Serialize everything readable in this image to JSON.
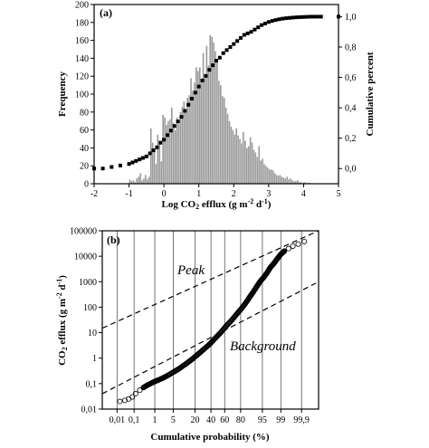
{
  "chart_data": [
    {
      "type": "bar",
      "panel_label": "(a)",
      "xlabel": "Log CO₂ efflux (g m⁻² d⁻¹)",
      "ylabel": "Frequency",
      "y2label": "Cumulative percent",
      "xlim": [
        -2,
        5
      ],
      "ylim": [
        0,
        200
      ],
      "y2lim": [
        -0.1,
        1.08
      ],
      "xticks": [
        "-2",
        "-1",
        "0",
        "1",
        "2",
        "3",
        "4",
        "5"
      ],
      "yticks": [
        "0",
        "20",
        "40",
        "60",
        "80",
        "100",
        "120",
        "140",
        "160",
        "180",
        "200"
      ],
      "y2ticks": [
        "0,0",
        "0,2",
        "0,4",
        "0,6",
        "0,8",
        "1,0"
      ],
      "bars": {
        "x_start": -1.0,
        "bin_width": 0.05,
        "values": [
          5,
          3,
          4,
          2,
          6,
          8,
          12,
          4,
          6,
          10,
          5,
          8,
          62,
          46,
          37,
          22,
          55,
          48,
          25,
          77,
          74,
          66,
          70,
          72,
          85,
          68,
          60,
          74,
          67,
          80,
          86,
          92,
          82,
          96,
          99,
          118,
          104,
          113,
          130,
          126,
          130,
          117,
          146,
          120,
          154,
          132,
          166,
          164,
          158,
          148,
          136,
          115,
          110,
          98,
          96,
          85,
          78,
          70,
          64,
          60,
          55,
          62,
          54,
          50,
          45,
          58,
          48,
          40,
          42,
          52,
          46,
          38,
          35,
          30,
          42,
          26,
          28,
          22,
          20,
          18,
          16,
          16,
          15,
          12,
          10,
          9,
          10,
          8,
          7,
          6,
          8,
          5,
          6,
          4,
          3,
          3,
          4,
          2,
          2,
          1,
          2,
          1,
          1,
          1
        ],
        "color": "#9a9a9a"
      },
      "cumulative": {
        "name": "Cumulative percent",
        "x": [
          -2,
          -1.75,
          -1.5,
          -1.25,
          -1.0,
          -0.9,
          -0.8,
          -0.7,
          -0.6,
          -0.5,
          -0.4,
          -0.3,
          -0.2,
          -0.1,
          0.0,
          0.1,
          0.2,
          0.3,
          0.4,
          0.5,
          0.6,
          0.7,
          0.8,
          0.9,
          1.0,
          1.1,
          1.2,
          1.3,
          1.4,
          1.5,
          1.6,
          1.7,
          1.8,
          1.9,
          2.0,
          2.1,
          2.2,
          2.3,
          2.4,
          2.5,
          2.6,
          2.7,
          2.8,
          2.9,
          3.0,
          3.1,
          3.2,
          3.3,
          3.4,
          3.5,
          3.6,
          3.7,
          3.8,
          3.9,
          4.0,
          4.1,
          4.2,
          4.3,
          4.4,
          4.5,
          5.0
        ],
        "y": [
          0.0,
          0.0,
          0.01,
          0.02,
          0.03,
          0.04,
          0.05,
          0.06,
          0.07,
          0.08,
          0.1,
          0.12,
          0.14,
          0.17,
          0.19,
          0.22,
          0.25,
          0.28,
          0.31,
          0.34,
          0.38,
          0.42,
          0.46,
          0.5,
          0.54,
          0.58,
          0.61,
          0.65,
          0.68,
          0.71,
          0.73,
          0.76,
          0.78,
          0.8,
          0.82,
          0.84,
          0.86,
          0.88,
          0.89,
          0.9,
          0.915,
          0.93,
          0.945,
          0.955,
          0.965,
          0.972,
          0.978,
          0.983,
          0.987,
          0.99,
          0.992,
          0.994,
          0.996,
          0.997,
          0.998,
          0.999,
          1.0,
          1.0,
          1.0,
          1.0,
          1.0
        ]
      }
    },
    {
      "type": "scatter",
      "panel_label": "(b)",
      "xlabel": "Cumulative probability (%)",
      "ylabel": "CO₂ efflux (g m⁻² d⁻¹)",
      "y_scale": "log",
      "x_scale": "probability",
      "ylim": [
        0.01,
        100000
      ],
      "xlim": [
        0.001,
        99.99
      ],
      "xticks": [
        "0,01",
        "0,1",
        "1",
        "5",
        "20",
        "40",
        "60",
        "80",
        "95",
        "99",
        "99,9"
      ],
      "xtick_values": [
        0.01,
        0.1,
        1,
        5,
        20,
        40,
        60,
        80,
        95,
        99,
        99.9
      ],
      "yticks": [
        "0,01",
        "0,1",
        "1",
        "10",
        "100",
        "1000",
        "10000",
        "100000"
      ],
      "annotations": [
        "Peak",
        "Background"
      ],
      "lines": [
        {
          "name": "Peak",
          "x": [
            0.001,
            99.99
          ],
          "y": [
            15,
            100000
          ]
        },
        {
          "name": "Background",
          "x": [
            0.001,
            99.99
          ],
          "y": [
            0.04,
            1000
          ]
        }
      ],
      "points": {
        "p": [
          0.015,
          0.03,
          0.05,
          0.08,
          0.12,
          0.2,
          0.3,
          0.5,
          0.8,
          1.2,
          2,
          3,
          5,
          8,
          12,
          17,
          23,
          30,
          38,
          46,
          54,
          62,
          70,
          76,
          81,
          85,
          88,
          90.5,
          92.5,
          94,
          95.5,
          96.5,
          97.3,
          98,
          98.6,
          99,
          99.3,
          99.55,
          99.72,
          99.85,
          99.93
        ],
        "y": [
          0.02,
          0.022,
          0.025,
          0.03,
          0.04,
          0.055,
          0.07,
          0.09,
          0.11,
          0.13,
          0.16,
          0.2,
          0.28,
          0.4,
          0.6,
          0.9,
          1.4,
          2.2,
          3.5,
          6,
          10,
          18,
          32,
          55,
          90,
          150,
          250,
          400,
          650,
          1000,
          1500,
          2200,
          3500,
          5000,
          8000,
          12000,
          16000,
          20000,
          25000,
          30000,
          38000
        ]
      }
    }
  ]
}
